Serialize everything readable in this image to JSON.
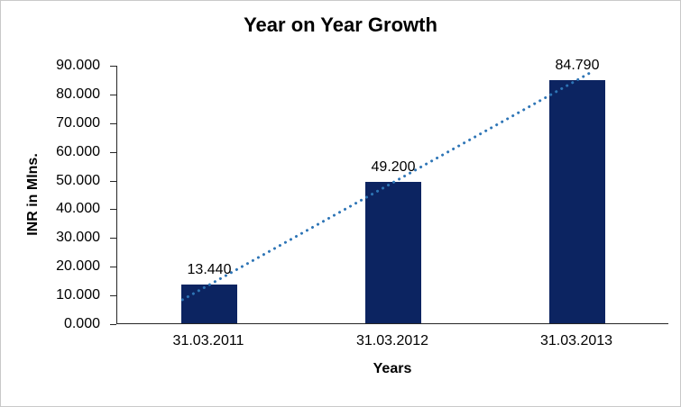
{
  "chart_data": {
    "type": "bar",
    "title": "Year on Year Growth",
    "xlabel": "Years",
    "ylabel": "INR in Mlns.",
    "categories": [
      "31.03.2011",
      "31.03.2012",
      "31.03.2013"
    ],
    "values": [
      13440,
      49200,
      84790
    ],
    "value_labels": [
      "13.440",
      "49.200",
      "84.790"
    ],
    "ylim": [
      0,
      90000
    ],
    "ytick_step": 10000,
    "ytick_labels": [
      "0.000",
      "10.000",
      "20.000",
      "30.000",
      "40.000",
      "50.000",
      "60.000",
      "70.000",
      "80.000",
      "90.000"
    ],
    "grid": false,
    "legend": "none",
    "bar_color": "#0C2461",
    "trendline": {
      "style": "dotted",
      "shape": "linear",
      "color": "#2E75B6"
    }
  }
}
